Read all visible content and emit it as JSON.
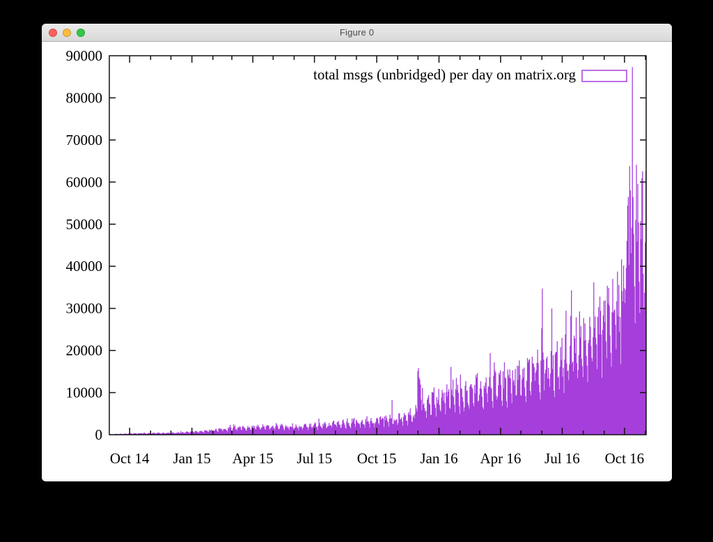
{
  "window": {
    "title": "Figure 0",
    "controls": {
      "close": "close",
      "minimize": "minimize",
      "zoom": "zoom"
    }
  },
  "chart_data": {
    "type": "bar",
    "title": "",
    "legend": "total msgs (unbridged) per day on matrix.org",
    "legend_position": "top-right",
    "bar_color": "#a53eda",
    "axis_color": "#111111",
    "grid": false,
    "x_start": "2014-09-01",
    "x_end": "2016-11-02",
    "ylim": [
      0,
      90000
    ],
    "yticks": [
      {
        "v": 0,
        "label": "0"
      },
      {
        "v": 10000,
        "label": "10000"
      },
      {
        "v": 20000,
        "label": "20000"
      },
      {
        "v": 30000,
        "label": "30000"
      },
      {
        "v": 40000,
        "label": "40000"
      },
      {
        "v": 50000,
        "label": "50000"
      },
      {
        "v": 60000,
        "label": "60000"
      },
      {
        "v": 70000,
        "label": "70000"
      },
      {
        "v": 80000,
        "label": "80000"
      },
      {
        "v": 90000,
        "label": "90000"
      }
    ],
    "xticks": [
      {
        "date": "2014-10-01",
        "label": "Oct 14"
      },
      {
        "date": "2015-01-01",
        "label": "Jan 15"
      },
      {
        "date": "2015-04-01",
        "label": "Apr 15"
      },
      {
        "date": "2015-07-01",
        "label": "Jul 15"
      },
      {
        "date": "2015-10-01",
        "label": "Oct 15"
      },
      {
        "date": "2016-01-01",
        "label": "Jan 16"
      },
      {
        "date": "2016-04-01",
        "label": "Apr 16"
      },
      {
        "date": "2016-07-01",
        "label": "Jul 16"
      },
      {
        "date": "2016-10-01",
        "label": "Oct 16"
      }
    ],
    "minor_xtick_unit": "month",
    "envelope_daily_median": [
      [
        "2014-09-01",
        130
      ],
      [
        "2014-10-01",
        260
      ],
      [
        "2014-11-01",
        380
      ],
      [
        "2014-12-01",
        450
      ],
      [
        "2015-01-01",
        650
      ],
      [
        "2015-02-01",
        1050
      ],
      [
        "2015-03-01",
        1500
      ],
      [
        "2015-04-01",
        1750
      ],
      [
        "2015-05-01",
        1950
      ],
      [
        "2015-06-01",
        1850
      ],
      [
        "2015-07-01",
        2150
      ],
      [
        "2015-08-01",
        2550
      ],
      [
        "2015-09-01",
        2950
      ],
      [
        "2015-10-01",
        3400
      ],
      [
        "2015-11-01",
        3900
      ],
      [
        "2015-11-26",
        4400
      ],
      [
        "2015-11-30",
        12800
      ],
      [
        "2015-12-04",
        11500
      ],
      [
        "2015-12-08",
        6800
      ],
      [
        "2015-12-20",
        7400
      ],
      [
        "2016-01-05",
        9000
      ],
      [
        "2016-01-20",
        10800
      ],
      [
        "2016-02-05",
        9600
      ],
      [
        "2016-03-01",
        11000
      ],
      [
        "2016-04-01",
        12500
      ],
      [
        "2016-05-01",
        14000
      ],
      [
        "2016-06-01",
        15500
      ],
      [
        "2016-07-01",
        18000
      ],
      [
        "2016-08-01",
        24000
      ],
      [
        "2016-09-01",
        27500
      ],
      [
        "2016-09-20",
        31000
      ],
      [
        "2016-10-01",
        36000
      ],
      [
        "2016-10-07",
        46000
      ],
      [
        "2016-10-12",
        50000
      ],
      [
        "2016-10-16",
        45500
      ],
      [
        "2016-10-22",
        47500
      ],
      [
        "2016-11-02",
        51000
      ]
    ],
    "spikes": [
      [
        "2015-10-23",
        8200
      ],
      [
        "2015-12-01",
        14800
      ],
      [
        "2015-12-02",
        13600
      ],
      [
        "2016-06-01",
        34700
      ],
      [
        "2016-06-15",
        30000
      ],
      [
        "2016-08-16",
        36200
      ],
      [
        "2016-09-13",
        37000
      ],
      [
        "2016-10-08",
        63800
      ],
      [
        "2016-10-09",
        58000
      ],
      [
        "2016-10-12",
        87300
      ],
      [
        "2016-10-27",
        57000
      ]
    ],
    "weekday_factors": [
      0.6,
      1.0,
      1.06,
      1.08,
      1.03,
      0.93,
      0.72
    ],
    "noise": {
      "seed": 9,
      "low": 0.8,
      "span": 0.45,
      "boost_chance": 0.06,
      "boost": 1.32
    },
    "min_value": 40
  }
}
